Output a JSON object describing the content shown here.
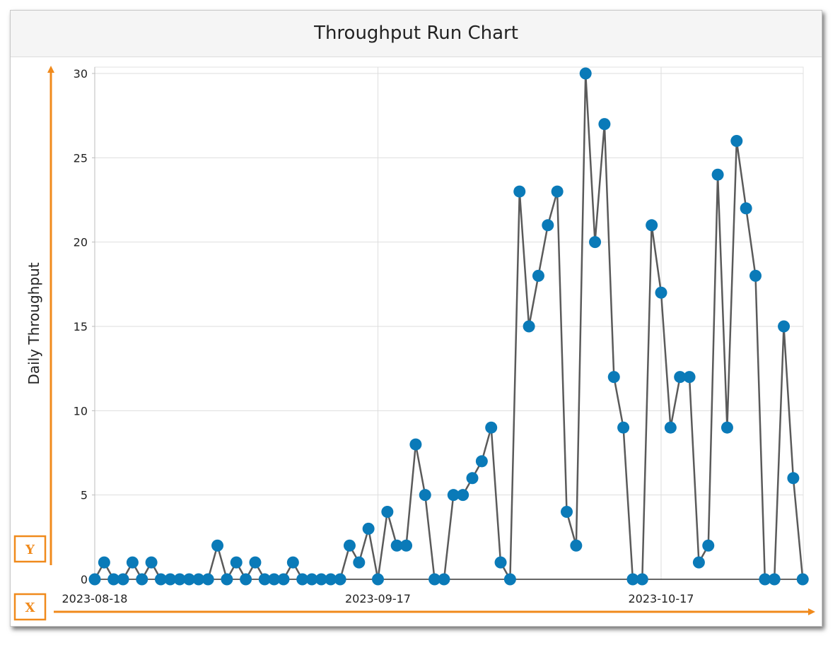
{
  "chart_data": {
    "type": "line",
    "title": "Throughput Run Chart",
    "xlabel": "",
    "ylabel": "Daily Throughput",
    "ylim": [
      0,
      30
    ],
    "yticks": [
      0,
      5,
      10,
      15,
      20,
      25,
      30
    ],
    "xticks": [
      "2023-08-18",
      "2023-09-17",
      "2023-10-17"
    ],
    "x_start": "2023-08-18",
    "grid": true,
    "series": [
      {
        "color": "#0a7ab8",
        "line_color": "#5a5a5a",
        "values": [
          0,
          1,
          0,
          0,
          1,
          0,
          1,
          0,
          0,
          0,
          0,
          0,
          0,
          2,
          0,
          1,
          0,
          1,
          0,
          0,
          0,
          1,
          0,
          0,
          0,
          0,
          0,
          2,
          1,
          3,
          0,
          4,
          2,
          2,
          8,
          5,
          0,
          0,
          5,
          5,
          6,
          7,
          9,
          1,
          0,
          23,
          15,
          18,
          21,
          23,
          4,
          2,
          30,
          20,
          27,
          12,
          9,
          0,
          0,
          21,
          17,
          9,
          12,
          12,
          1,
          2,
          24,
          9,
          26,
          22,
          18,
          0,
          0,
          15,
          6,
          0
        ]
      }
    ],
    "annotations": {
      "y_marker": "Y",
      "x_marker": "X",
      "marker_color": "#f08a1c"
    }
  }
}
